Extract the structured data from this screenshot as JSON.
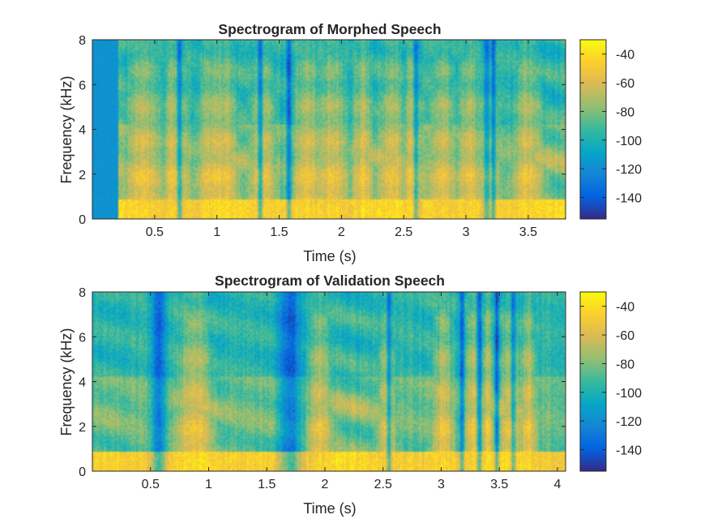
{
  "chart_data": [
    {
      "type": "heatmap",
      "title": "Spectrogram of Morphed Speech",
      "xlabel": "Time (s)",
      "ylabel": "Frequency (kHz)",
      "xlim": [
        0,
        3.8
      ],
      "ylim": [
        0,
        8
      ],
      "xticks": [
        0.5,
        1,
        1.5,
        2,
        2.5,
        3,
        3.5
      ],
      "xtick_labels": [
        "0.5",
        "1",
        "1.5",
        "2",
        "2.5",
        "3",
        "3.5"
      ],
      "yticks": [
        0,
        2,
        4,
        6,
        8
      ],
      "ytick_labels": [
        "0",
        "2",
        "4",
        "6",
        "8"
      ],
      "colorbar": {
        "colormap": "parula",
        "clim": [
          -155,
          -30
        ],
        "ticks": [
          -40,
          -60,
          -80,
          -100,
          -120,
          -140
        ],
        "tick_labels": [
          "-40",
          "-60",
          "-80",
          "-100",
          "-120",
          "-140"
        ]
      },
      "silence_until": 0.21,
      "bursts": [
        [
          0.41,
          0.09
        ],
        [
          0.67,
          0.06
        ],
        [
          0.98,
          0.09
        ],
        [
          1.08,
          0.05
        ],
        [
          1.37,
          0.06
        ],
        [
          1.73,
          0.07
        ],
        [
          1.93,
          0.07
        ],
        [
          2.17,
          0.05
        ],
        [
          2.4,
          0.06
        ],
        [
          2.58,
          0.05
        ],
        [
          2.82,
          0.06
        ],
        [
          3.02,
          0.05
        ],
        [
          3.17,
          0.05
        ],
        [
          3.5,
          0.07
        ]
      ],
      "gaps": [
        [
          0.7,
          0.02
        ],
        [
          1.35,
          0.02
        ],
        [
          1.58,
          0.02
        ],
        [
          2.6,
          0.02
        ],
        [
          3.17,
          0.03
        ],
        [
          3.22,
          0.02
        ]
      ]
    },
    {
      "type": "heatmap",
      "title": "Spectrogram of Validation Speech",
      "xlabel": "Time (s)",
      "ylabel": "Frequency (kHz)",
      "xlim": [
        0,
        4.07
      ],
      "ylim": [
        0,
        8
      ],
      "xticks": [
        0.5,
        1,
        1.5,
        2,
        2.5,
        3,
        3.5,
        4
      ],
      "xtick_labels": [
        "0.5",
        "1",
        "1.5",
        "2",
        "2.5",
        "3",
        "3.5",
        "4"
      ],
      "yticks": [
        0,
        2,
        4,
        6,
        8
      ],
      "ytick_labels": [
        "0",
        "2",
        "4",
        "6",
        "8"
      ],
      "colorbar": {
        "colormap": "parula",
        "clim": [
          -155,
          -30
        ],
        "ticks": [
          -40,
          -60,
          -80,
          -100,
          -120,
          -140
        ],
        "tick_labels": [
          "-40",
          "-60",
          "-80",
          "-100",
          "-120",
          "-140"
        ]
      },
      "silence_until": 0.0,
      "bursts": [
        [
          0.88,
          0.09
        ],
        [
          1.95,
          0.06
        ],
        [
          2.53,
          0.04
        ],
        [
          3.02,
          0.05
        ],
        [
          3.27,
          0.04
        ],
        [
          3.4,
          0.03
        ],
        [
          3.6,
          0.05
        ],
        [
          3.75,
          0.04
        ]
      ],
      "gaps": [
        [
          0.57,
          0.06
        ],
        [
          1.7,
          0.1
        ],
        [
          2.55,
          0.02
        ],
        [
          3.18,
          0.02
        ],
        [
          3.33,
          0.02
        ],
        [
          3.48,
          0.02
        ],
        [
          3.62,
          0.02
        ]
      ]
    }
  ]
}
